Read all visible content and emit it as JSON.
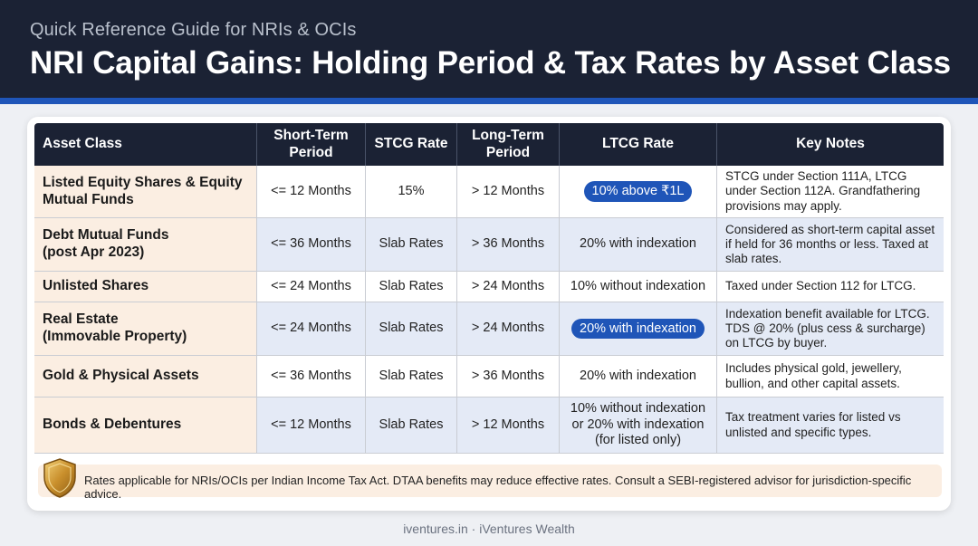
{
  "header": {
    "subtitle": "Quick Reference Guide for NRIs & OCIs",
    "title": "NRI Capital Gains: Holding Period & Tax Rates by Asset Class"
  },
  "colors": {
    "header_bg": "#1b2234",
    "accent": "#1f55b8",
    "asset_cell_bg": "#fbeee2",
    "alt_row_bg": "#e4eaf6"
  },
  "table": {
    "columns": {
      "asset_class": "Asset Class",
      "short_term_period_1": "Short-Term",
      "short_term_period_2": "Period",
      "stcg_rate": "STCG Rate",
      "long_term_period_1": "Long-Term",
      "long_term_period_2": "Period",
      "ltcg_rate": "LTCG Rate",
      "key_notes": "Key Notes"
    },
    "rows": [
      {
        "asset_1": "Listed Equity Shares & Equity",
        "asset_2": "Mutual Funds",
        "short_term": "<= 12 Months",
        "stcg": "15%",
        "long_term": "> 12 Months",
        "ltcg": "10% above ₹1L",
        "notes": "STCG under Section 111A, LTCG under Section 112A. Grandfathering provisions may apply."
      },
      {
        "asset_1": "Debt Mutual Funds",
        "asset_2": "(post Apr 2023)",
        "short_term": "<= 36 Months",
        "stcg": "Slab Rates",
        "long_term": "> 36 Months",
        "ltcg": "20% with indexation",
        "notes": "Considered as short-term capital asset if held for 36 months or less. Taxed at slab rates."
      },
      {
        "asset_1": "Unlisted Shares",
        "asset_2": "",
        "short_term": "<= 24 Months",
        "stcg": "Slab Rates",
        "long_term": "> 24 Months",
        "ltcg": "10% without indexation",
        "notes": "Taxed under Section 112 for LTCG."
      },
      {
        "asset_1": "Real Estate",
        "asset_2": "(Immovable Property)",
        "short_term": "<= 24 Months",
        "stcg": "Slab Rates",
        "long_term": "> 24 Months",
        "ltcg": "20% with indexation",
        "notes": "Indexation benefit available for LTCG. TDS @ 20% (plus cess & surcharge) on LTCG by buyer."
      },
      {
        "asset_1": "Gold & Physical Assets",
        "asset_2": "",
        "short_term": "<= 36 Months",
        "stcg": "Slab Rates",
        "long_term": "> 36 Months",
        "ltcg": "20% with indexation",
        "notes": "Includes physical gold, jewellery, bullion, and other capital assets."
      },
      {
        "asset_1": "Bonds & Debentures",
        "asset_2": "",
        "short_term": "<= 12 Months",
        "stcg": "Slab Rates",
        "long_term": "> 12 Months",
        "ltcg_1": "10% without indexation",
        "ltcg_2": "or 20% with indexation",
        "ltcg_3": "(for listed only)",
        "notes": "Tax treatment varies for listed vs unlisted and specific types."
      }
    ]
  },
  "footer_note": {
    "icon": "shield-icon",
    "text": "Rates applicable for NRIs/OCIs per Indian Income Tax Act. DTAA benefits may reduce effective rates. Consult a SEBI-registered advisor for jurisdiction-specific advice."
  },
  "credit": "iventures.in · iVentures Wealth"
}
